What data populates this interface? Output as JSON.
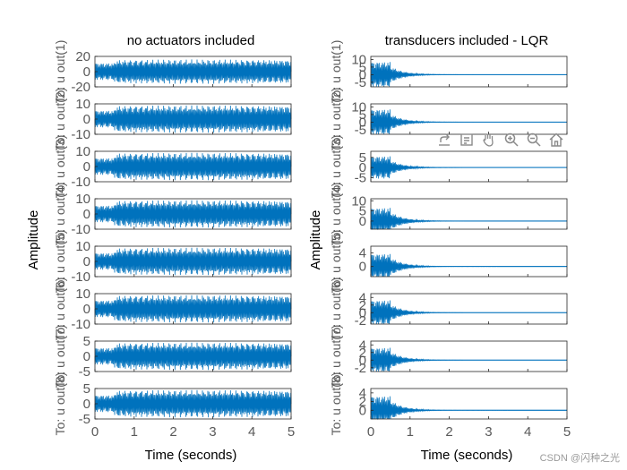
{
  "chart_data": [
    {
      "type": "line",
      "title": "no actuators included",
      "ylabel": "Amplitude",
      "xlabel": "Time (seconds)",
      "xlim": [
        0,
        5
      ],
      "xticks": [
        "0",
        "1",
        "2",
        "3",
        "4",
        "5"
      ],
      "line_color": "#0072BD",
      "grid": false,
      "response": "sustained oscillation; small before t=0.5 s, full amplitude after",
      "disturbance_time_s": 0.5,
      "outputs": [
        {
          "label": "To: u out(1)",
          "ylim": [
            -20,
            20
          ],
          "ticks": [
            20,
            0,
            -20
          ],
          "pre_amp": 12,
          "post_amp": 16,
          "decay": 0
        },
        {
          "label": "To: u out(2)",
          "ylim": [
            -10,
            10
          ],
          "ticks": [
            10,
            0,
            -10
          ],
          "pre_amp": 6,
          "post_amp": 9,
          "decay": 0
        },
        {
          "label": "To: u out(3)",
          "ylim": [
            -10,
            10
          ],
          "ticks": [
            10,
            0,
            -10
          ],
          "pre_amp": 6,
          "post_amp": 9,
          "decay": 0
        },
        {
          "label": "To: u out(4)",
          "ylim": [
            -10,
            10
          ],
          "ticks": [
            10,
            0,
            -10
          ],
          "pre_amp": 6,
          "post_amp": 9,
          "decay": 0
        },
        {
          "label": "To: u out(5)",
          "ylim": [
            -10,
            10
          ],
          "ticks": [
            10,
            0,
            -10
          ],
          "pre_amp": 6,
          "post_amp": 9,
          "decay": 0
        },
        {
          "label": "To: u out(6)",
          "ylim": [
            -10,
            10
          ],
          "ticks": [
            10,
            0,
            -10
          ],
          "pre_amp": 6,
          "post_amp": 9,
          "decay": 0
        },
        {
          "label": "To: u out(7)",
          "ylim": [
            -5,
            5
          ],
          "ticks": [
            5,
            0,
            -5
          ],
          "pre_amp": 3,
          "post_amp": 4.5,
          "decay": 0
        },
        {
          "label": "To: u out(8)",
          "ylim": [
            -5,
            5
          ],
          "ticks": [
            5,
            0,
            -5
          ],
          "pre_amp": 3,
          "post_amp": 4.5,
          "decay": 0
        }
      ]
    },
    {
      "type": "line",
      "title": "transducers included - LQR",
      "ylabel": "Amplitude",
      "xlabel": "Time (seconds)",
      "xlim": [
        0,
        5
      ],
      "xticks": [
        "0",
        "1",
        "2",
        "3",
        "4",
        "5"
      ],
      "line_color": "#0072BD",
      "grid": false,
      "response": "decaying oscillation, settled by about 2 s",
      "disturbance_time_s": 0.5,
      "outputs": [
        {
          "label": "To: u out(1)",
          "ylim": [
            -8,
            12
          ],
          "ticks": [
            10,
            5,
            0,
            -5
          ],
          "pre_amp": 9,
          "post_amp": 6,
          "decay": 3
        },
        {
          "label": "To: u out(2)",
          "ylim": [
            -8,
            12
          ],
          "ticks": [
            10,
            5,
            0,
            -5
          ],
          "pre_amp": 9,
          "post_amp": 6,
          "decay": 3
        },
        {
          "label": "To: u out(3)",
          "ylim": [
            -7,
            8
          ],
          "ticks": [
            5,
            0,
            -5
          ],
          "pre_amp": 6,
          "post_amp": 4,
          "decay": 3
        },
        {
          "label": "To: u out(4)",
          "ylim": [
            -4,
            11
          ],
          "ticks": [
            10,
            5,
            0
          ],
          "pre_amp": 7,
          "post_amp": 5,
          "decay": 3
        },
        {
          "label": "To: u out(5)",
          "ylim": [
            -3,
            6
          ],
          "ticks": [
            4,
            0
          ],
          "pre_amp": 4,
          "post_amp": 3,
          "decay": 3
        },
        {
          "label": "To: u out(6)",
          "ylim": [
            -3,
            5
          ],
          "ticks": [
            4,
            2,
            0,
            -2
          ],
          "pre_amp": 3.5,
          "post_amp": 2.5,
          "decay": 3
        },
        {
          "label": "To: u out(7)",
          "ylim": [
            -3,
            5
          ],
          "ticks": [
            4,
            2,
            0,
            -2
          ],
          "pre_amp": 3.5,
          "post_amp": 2.5,
          "decay": 3
        },
        {
          "label": "To: u out(8)",
          "ylim": [
            -2,
            5
          ],
          "ticks": [
            4,
            2,
            0
          ],
          "pre_amp": 3.5,
          "post_amp": 2.5,
          "decay": 3
        }
      ]
    }
  ],
  "toolbar": {
    "buttons": [
      {
        "name": "export-icon",
        "title": ""
      },
      {
        "name": "datatip-icon",
        "title": ""
      },
      {
        "name": "pan-hand-icon",
        "title": ""
      },
      {
        "name": "zoom-in-icon",
        "title": ""
      },
      {
        "name": "zoom-out-icon",
        "title": ""
      },
      {
        "name": "home-icon",
        "title": ""
      }
    ]
  },
  "watermark": "CSDN @闪种之光"
}
